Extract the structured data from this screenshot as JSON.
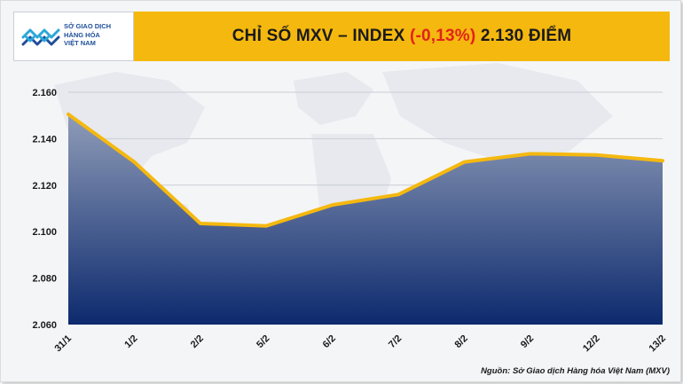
{
  "header": {
    "title_prefix": "CHỈ SỐ MXV – INDEX ",
    "change": "(-0,13%)",
    "title_suffix": " 2.130 ĐIỂM"
  },
  "logo": {
    "line1": "SỞ GIAO DỊCH",
    "line2": "HÀNG HÓA",
    "line3": "VIỆT NAM",
    "brand_color": "#1f4e99"
  },
  "source": "Nguồn: Sở Giao dịch Hàng hóa Việt Nam (MXV)",
  "colors": {
    "header": "#f5b80f",
    "line": "#f5b80f",
    "area_top": "#8f9cb8",
    "area_bottom": "#0d2a6e",
    "negative": "#e2231a"
  },
  "chart_data": {
    "type": "area",
    "title": "CHỈ SỐ MXV – INDEX (-0,13%) 2.130 ĐIỂM",
    "categories": [
      "31/1",
      "1/2",
      "2/2",
      "5/2",
      "6/2",
      "7/2",
      "8/2",
      "9/2",
      "12/2",
      "13/2"
    ],
    "values": [
      2150.5,
      2130,
      2103.5,
      2102.5,
      2111.5,
      2116,
      2130,
      2133.5,
      2133,
      2130.5
    ],
    "ylim": [
      2060,
      2160
    ],
    "yticks": [
      2060,
      2080,
      2100,
      2120,
      2140,
      2160
    ],
    "ytick_labels": [
      "2.060",
      "2.080",
      "2.100",
      "2.120",
      "2.140",
      "2.160"
    ],
    "grid": true,
    "legend": "none"
  }
}
